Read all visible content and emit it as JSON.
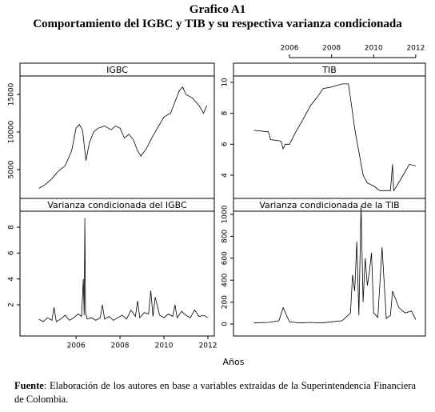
{
  "title": "Grafico A1",
  "subtitle": "Comportamiento del IGBC y TIB y su respectiva varianza condicionada",
  "x_label": "Años",
  "source": {
    "label": "Fuente",
    "text": ": Elaboración de los autores en base a variables extraídas de la Superintendencia Financiera de Colombia."
  },
  "chart_data": [
    {
      "type": "line",
      "title": "IGBC",
      "color": "#000000",
      "x": [
        2004.3,
        2004.6,
        2004.9,
        2005.2,
        2005.5,
        2005.8,
        2006.0,
        2006.15,
        2006.3,
        2006.4,
        2006.45,
        2006.6,
        2006.8,
        2007.0,
        2007.3,
        2007.6,
        2007.8,
        2008.0,
        2008.2,
        2008.4,
        2008.6,
        2008.8,
        2008.95,
        2009.2,
        2009.5,
        2009.8,
        2010.0,
        2010.3,
        2010.5,
        2010.7,
        2010.85,
        2011.0,
        2011.3,
        2011.6,
        2011.8,
        2011.95
      ],
      "values": [
        2500,
        3000,
        3800,
        4800,
        5500,
        7500,
        10500,
        11000,
        10200,
        7500,
        6200,
        8500,
        10000,
        10500,
        10800,
        10300,
        10800,
        10500,
        9200,
        9700,
        9000,
        7500,
        6800,
        7800,
        9500,
        11000,
        12000,
        12500,
        14000,
        15500,
        16000,
        15000,
        14500,
        13500,
        12500,
        13500
      ],
      "xlim": [
        2003.45,
        2012.29
      ],
      "ylim": [
        1170,
        17450
      ],
      "yticks": [
        5000,
        10000,
        15000
      ]
    },
    {
      "type": "line",
      "title": "TIB",
      "color": "#000000",
      "x": [
        2004.3,
        2005.0,
        2005.1,
        2005.6,
        2005.7,
        2005.8,
        2006.0,
        2006.3,
        2006.6,
        2007.0,
        2007.3,
        2007.6,
        2008.0,
        2008.5,
        2008.8,
        2008.9,
        2009.1,
        2009.3,
        2009.5,
        2009.7,
        2010.0,
        2010.3,
        2010.8,
        2010.9,
        2010.95,
        2011.1,
        2011.4,
        2011.7,
        2012.0
      ],
      "values": [
        6.9,
        6.8,
        6.3,
        6.2,
        5.7,
        6.0,
        6.0,
        6.8,
        7.5,
        8.5,
        9.0,
        9.6,
        9.7,
        9.9,
        9.9,
        9.0,
        7.0,
        5.5,
        4.0,
        3.5,
        3.3,
        3.0,
        3.0,
        4.7,
        3.0,
        3.3,
        4.0,
        4.7,
        4.6
      ],
      "xlim": [
        2003.34,
        2012.46
      ],
      "ylim": [
        2.5,
        10.41
      ],
      "yticks": [
        4,
        6,
        8,
        10
      ],
      "xticks": [
        2006,
        2008,
        2010,
        2012
      ],
      "xaxis": "top"
    },
    {
      "type": "line",
      "title": "Varianza condicionada del IGBC",
      "color": "#000000",
      "x": [
        2004.3,
        2004.5,
        2004.7,
        2004.9,
        2005.0,
        2005.1,
        2005.3,
        2005.5,
        2005.7,
        2005.9,
        2006.1,
        2006.25,
        2006.33,
        2006.37,
        2006.4,
        2006.43,
        2006.5,
        2006.7,
        2006.9,
        2007.1,
        2007.2,
        2007.3,
        2007.5,
        2007.7,
        2007.9,
        2008.1,
        2008.3,
        2008.5,
        2008.7,
        2008.8,
        2008.9,
        2009.1,
        2009.3,
        2009.4,
        2009.5,
        2009.6,
        2009.8,
        2010.0,
        2010.2,
        2010.4,
        2010.5,
        2010.6,
        2010.8,
        2011.0,
        2011.2,
        2011.4,
        2011.6,
        2011.8,
        2012.0
      ],
      "values": [
        0.9,
        0.7,
        1.0,
        0.8,
        1.8,
        0.7,
        0.9,
        1.2,
        0.8,
        1.0,
        1.3,
        1.1,
        4.0,
        1.2,
        8.7,
        1.5,
        0.9,
        1.0,
        0.8,
        1.0,
        2.0,
        0.9,
        1.1,
        0.8,
        1.0,
        1.2,
        0.9,
        1.6,
        1.1,
        2.3,
        1.0,
        1.4,
        1.3,
        3.1,
        1.1,
        2.6,
        1.2,
        1.0,
        1.3,
        1.1,
        2.0,
        1.0,
        1.5,
        1.2,
        1.0,
        1.6,
        1.1,
        1.2,
        1.0
      ],
      "xlim": [
        2003.45,
        2012.29
      ],
      "ylim": [
        -0.41,
        9.24
      ],
      "yticks": [
        2,
        4,
        6,
        8
      ],
      "xticks": [
        2006,
        2008,
        2010,
        2012
      ],
      "xaxis": "bottom"
    },
    {
      "type": "line",
      "title": "Varianza condicionada de la TIB",
      "color": "#000000",
      "x": [
        2004.3,
        2005.0,
        2005.5,
        2005.7,
        2006.0,
        2006.5,
        2007.0,
        2007.5,
        2008.0,
        2008.5,
        2008.9,
        2009.0,
        2009.1,
        2009.2,
        2009.3,
        2009.4,
        2009.5,
        2009.6,
        2009.7,
        2009.8,
        2009.9,
        2010.0,
        2010.2,
        2010.4,
        2010.6,
        2010.8,
        2010.9,
        2011.2,
        2011.5,
        2011.8,
        2012.0
      ],
      "values": [
        10,
        15,
        30,
        150,
        20,
        10,
        15,
        10,
        20,
        30,
        100,
        450,
        300,
        750,
        80,
        1080,
        200,
        600,
        350,
        480,
        650,
        100,
        60,
        700,
        50,
        80,
        300,
        150,
        100,
        120,
        40
      ],
      "xlim": [
        2003.34,
        2012.46
      ],
      "ylim": [
        -109,
        1029
      ],
      "yticks": [
        0,
        200,
        400,
        600,
        800,
        1000
      ]
    }
  ]
}
